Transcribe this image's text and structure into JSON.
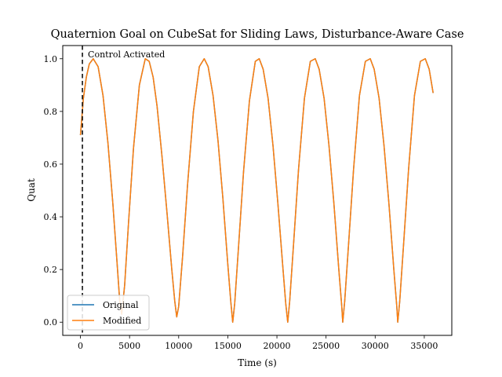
{
  "chart_data": {
    "type": "line",
    "title": "Quaternion Goal on CubeSat for Sliding Laws, Disturbance-Aware Case",
    "xlabel": "Time (s)",
    "ylabel": "Quat",
    "xlim": [
      -1800,
      37800
    ],
    "ylim": [
      -0.05,
      1.05
    ],
    "xticks": [
      0,
      5000,
      10000,
      15000,
      20000,
      25000,
      30000,
      35000
    ],
    "yticks": [
      0.0,
      0.2,
      0.4,
      0.6,
      0.8,
      1.0
    ],
    "xtick_labels": [
      "0",
      "5000",
      "10000",
      "15000",
      "20000",
      "25000",
      "30000",
      "35000"
    ],
    "ytick_labels": [
      "0.0",
      "0.2",
      "0.4",
      "0.6",
      "0.8",
      "1.0"
    ],
    "grid": false,
    "legend_position": "lower-left",
    "annotation": {
      "text": "Control Activated",
      "vline_x": 200
    },
    "series": [
      {
        "name": "Original",
        "color": "#1f77b4",
        "x": [
          0,
          300,
          600,
          900,
          1300,
          1800,
          2300,
          2800,
          3300,
          3700,
          4000,
          4200,
          4500,
          4900,
          5400,
          6000,
          6600,
          7000,
          7400,
          7800,
          8300,
          8800,
          9300,
          9600,
          9800,
          10000,
          10400,
          10900,
          11500,
          12100,
          12600,
          13000,
          13500,
          14000,
          14500,
          15000,
          15300,
          15500,
          15700,
          16100,
          16600,
          17200,
          17800,
          18200,
          18600,
          19100,
          19600,
          20100,
          20600,
          20900,
          21100,
          21300,
          21700,
          22200,
          22800,
          23400,
          23900,
          24300,
          24800,
          25300,
          25800,
          26300,
          26600,
          26700,
          26900,
          27300,
          27800,
          28400,
          29000,
          29500,
          29900,
          30400,
          30900,
          31400,
          31900,
          32200,
          32300,
          32500,
          32900,
          33400,
          34000,
          34600,
          35100,
          35500,
          35900
        ],
        "y": [
          0.71,
          0.85,
          0.93,
          0.98,
          1.0,
          0.97,
          0.86,
          0.68,
          0.45,
          0.24,
          0.08,
          0.03,
          0.14,
          0.38,
          0.66,
          0.9,
          1.0,
          0.99,
          0.93,
          0.82,
          0.63,
          0.42,
          0.2,
          0.08,
          0.02,
          0.06,
          0.25,
          0.52,
          0.8,
          0.97,
          1.0,
          0.97,
          0.86,
          0.69,
          0.47,
          0.22,
          0.08,
          0.0,
          0.07,
          0.29,
          0.57,
          0.84,
          0.99,
          1.0,
          0.96,
          0.85,
          0.67,
          0.45,
          0.21,
          0.07,
          0.0,
          0.08,
          0.3,
          0.58,
          0.85,
          0.99,
          1.0,
          0.96,
          0.85,
          0.67,
          0.45,
          0.2,
          0.06,
          0.0,
          0.08,
          0.3,
          0.58,
          0.86,
          0.99,
          1.0,
          0.96,
          0.85,
          0.67,
          0.45,
          0.2,
          0.06,
          0.0,
          0.08,
          0.3,
          0.58,
          0.86,
          0.99,
          1.0,
          0.96,
          0.87
        ]
      },
      {
        "name": "Modified",
        "color": "#ff7f0e",
        "x": [
          0,
          300,
          600,
          900,
          1300,
          1800,
          2300,
          2800,
          3300,
          3700,
          4000,
          4200,
          4500,
          4900,
          5400,
          6000,
          6600,
          7000,
          7400,
          7800,
          8300,
          8800,
          9300,
          9600,
          9800,
          10000,
          10400,
          10900,
          11500,
          12100,
          12600,
          13000,
          13500,
          14000,
          14500,
          15000,
          15300,
          15500,
          15700,
          16100,
          16600,
          17200,
          17800,
          18200,
          18600,
          19100,
          19600,
          20100,
          20600,
          20900,
          21100,
          21300,
          21700,
          22200,
          22800,
          23400,
          23900,
          24300,
          24800,
          25300,
          25800,
          26300,
          26600,
          26700,
          26900,
          27300,
          27800,
          28400,
          29000,
          29500,
          29900,
          30400,
          30900,
          31400,
          31900,
          32200,
          32300,
          32500,
          32900,
          33400,
          34000,
          34600,
          35100,
          35500,
          35900
        ],
        "y": [
          0.71,
          0.85,
          0.93,
          0.98,
          1.0,
          0.97,
          0.86,
          0.68,
          0.45,
          0.24,
          0.08,
          0.03,
          0.14,
          0.38,
          0.66,
          0.9,
          1.0,
          0.99,
          0.93,
          0.82,
          0.63,
          0.42,
          0.2,
          0.08,
          0.02,
          0.06,
          0.25,
          0.52,
          0.8,
          0.97,
          1.0,
          0.97,
          0.86,
          0.69,
          0.47,
          0.22,
          0.08,
          0.0,
          0.07,
          0.29,
          0.57,
          0.84,
          0.99,
          1.0,
          0.96,
          0.85,
          0.67,
          0.45,
          0.21,
          0.07,
          0.0,
          0.08,
          0.3,
          0.58,
          0.85,
          0.99,
          1.0,
          0.96,
          0.85,
          0.67,
          0.45,
          0.2,
          0.06,
          0.0,
          0.08,
          0.3,
          0.58,
          0.86,
          0.99,
          1.0,
          0.96,
          0.85,
          0.67,
          0.45,
          0.2,
          0.06,
          0.0,
          0.08,
          0.3,
          0.58,
          0.86,
          0.99,
          1.0,
          0.96,
          0.87
        ]
      }
    ]
  }
}
